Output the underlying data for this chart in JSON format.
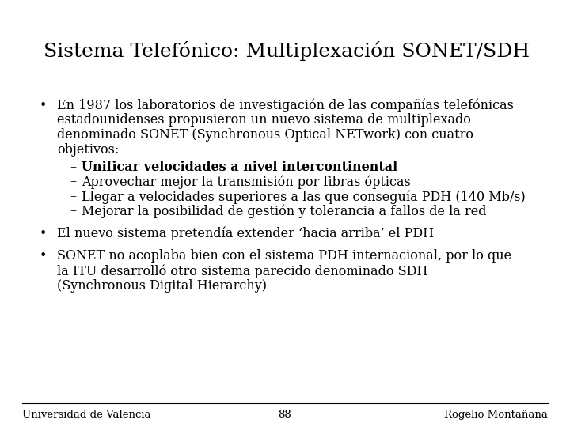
{
  "title": "Sistema Telefónico: Multiplexación SONET/SDH",
  "background_color": "#ffffff",
  "title_color": "#000000",
  "title_fontsize": 18,
  "body_fontsize": 11.5,
  "footer_fontsize": 9.5,
  "footer_left": "Universidad de Valencia",
  "footer_center": "88",
  "footer_right": "Rogelio Montañana",
  "bullet1_lines": [
    "En 1987 los laboratorios de investigación de las compañías telefónicas",
    "estadounidenses propusieron un nuevo sistema de multiplexado",
    "denominado SONET (Synchronous Optical NETwork) con cuatro",
    "objetivos:"
  ],
  "sub_bullets": [
    {
      "text": "Unificar velocidades a nivel intercontinental",
      "bold": true
    },
    {
      "text": "Aprovechar mejor la transmisión por fibras ópticas",
      "bold": false
    },
    {
      "text": "Llegar a velocidades superiores a las que conseguía PDH (140 Mb/s)",
      "bold": false
    },
    {
      "text": "Mejorar la posibilidad de gestión y tolerancia a fallos de la red",
      "bold": false
    }
  ],
  "bullet2": "El nuevo sistema pretendía extender ‘hacia arriba’ el PDH",
  "bullet3_lines": [
    "SONET no acoplaba bien con el sistema PDH internacional, por lo que",
    "la ITU desarrolló otro sistema parecido denominado SDH",
    "(Synchronous Digital Hierarchy)"
  ]
}
